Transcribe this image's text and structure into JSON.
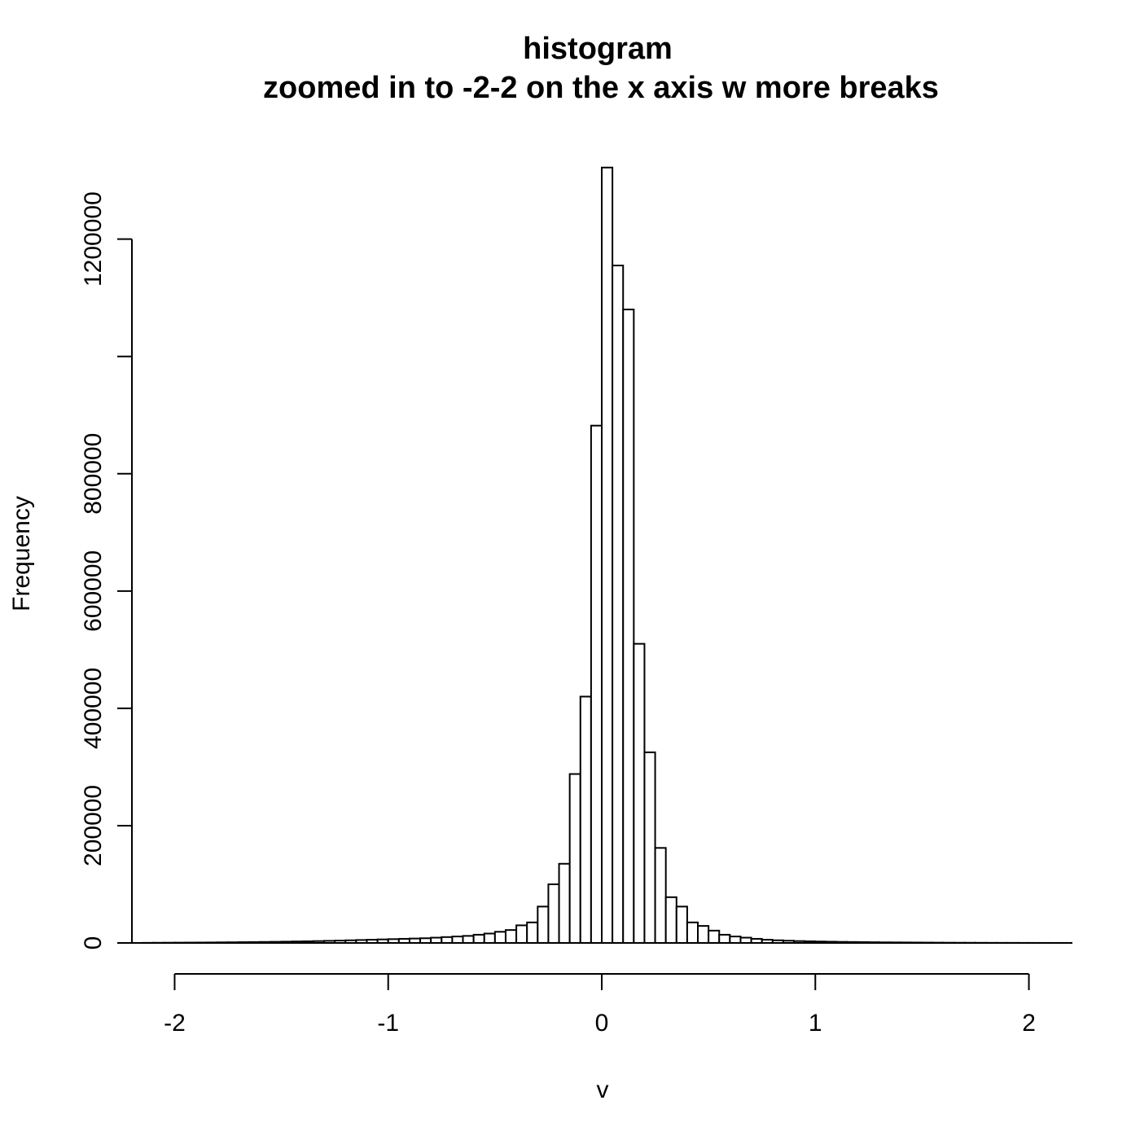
{
  "chart_data": {
    "type": "bar",
    "title": "histogram",
    "subtitle": "zoomed in to -2-2 on the x axis w more breaks",
    "xlabel": "v",
    "ylabel": "Frequency",
    "xlim": [
      -2.2,
      2.2
    ],
    "ylim": [
      0,
      1330000
    ],
    "xticks": [
      -2,
      -1,
      0,
      1,
      2
    ],
    "xtick_labels": [
      "-2",
      "-1",
      "0",
      "1",
      "2"
    ],
    "yticks": [
      0,
      200000,
      400000,
      600000,
      800000,
      1000000,
      1200000
    ],
    "ytick_labels": [
      "0",
      "200000",
      "400000",
      "600000",
      "800000",
      "",
      "1200000"
    ],
    "bin_width": 0.05,
    "bin_start": -2.15,
    "values": [
      200,
      300,
      400,
      500,
      600,
      700,
      800,
      1000,
      1100,
      1300,
      1500,
      1700,
      1900,
      2200,
      2500,
      2800,
      3200,
      3600,
      4000,
      4500,
      5000,
      5500,
      6000,
      6500,
      7000,
      7500,
      8000,
      9000,
      10000,
      11000,
      12000,
      14000,
      16000,
      19000,
      22000,
      30000,
      35000,
      62000,
      100000,
      135000,
      288000,
      420000,
      882000,
      1322000,
      1155000,
      1080000,
      510000,
      325000,
      162000,
      78000,
      62000,
      35000,
      29000,
      21000,
      14000,
      11000,
      9000,
      7000,
      5500,
      4500,
      3800,
      3200,
      2800,
      2400,
      2100,
      1800,
      1600,
      1400,
      1200,
      1000,
      900,
      800,
      700,
      600,
      500,
      400,
      350,
      300,
      250,
      200,
      170,
      150,
      120,
      100,
      80,
      60,
      50
    ]
  }
}
